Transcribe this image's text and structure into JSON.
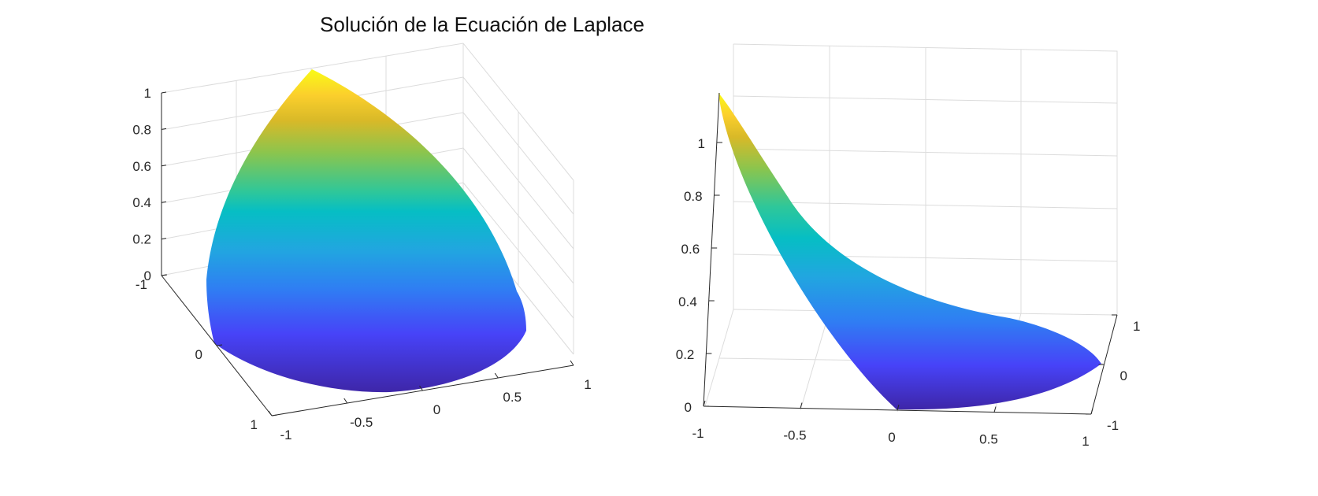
{
  "figure": {
    "title": "Solución de la Ecuación de Laplace"
  },
  "colormap": [
    "#3e26a8",
    "#4743f8",
    "#2f7ef3",
    "#21a6e0",
    "#06bec4",
    "#2ec79a",
    "#8ac54e",
    "#d8b928",
    "#fbcf2c",
    "#f9fb15"
  ],
  "chart_data": [
    {
      "type": "surface",
      "view": "perspective-left",
      "surface": "laplace solution on unit disk quadrant",
      "xlim": [
        -1,
        1
      ],
      "ylim": [
        -1,
        1
      ],
      "zlim": [
        0,
        1
      ],
      "x_ticks": [
        "-1",
        "-0.5",
        "0",
        "0.5",
        "1"
      ],
      "y_ticks": [
        "-1",
        "0",
        "1"
      ],
      "z_ticks": [
        "0",
        "0.2",
        "0.4",
        "0.6",
        "0.8",
        "1"
      ],
      "grid": true
    },
    {
      "type": "surface",
      "view": "front-right",
      "surface": "laplace solution on unit disk quadrant",
      "xlim": [
        -1,
        1
      ],
      "ylim": [
        -1,
        1
      ],
      "zlim": [
        0,
        1
      ],
      "x_ticks": [
        "-1",
        "-0.5",
        "0",
        "0.5",
        "1"
      ],
      "y_ticks": [
        "-1",
        "0",
        "1"
      ],
      "z_ticks": [
        "0",
        "0.2",
        "0.4",
        "0.6",
        "0.8",
        "1"
      ],
      "grid": true
    }
  ]
}
